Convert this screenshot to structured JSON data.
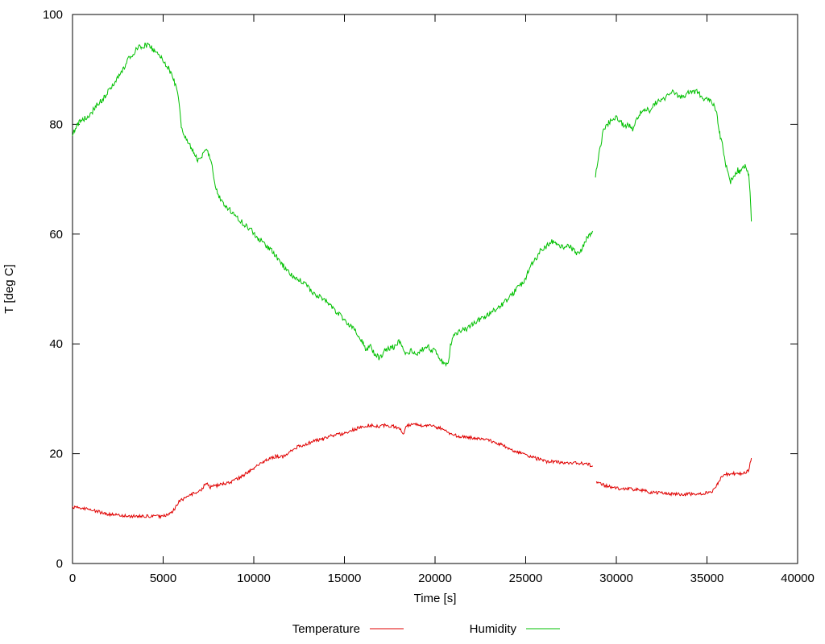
{
  "chart_data": {
    "type": "line",
    "title": "",
    "xlabel": "Time [s]",
    "ylabel": "T [deg C]",
    "xlim": [
      0,
      40000
    ],
    "ylim": [
      0,
      100
    ],
    "xticks": [
      0,
      5000,
      10000,
      15000,
      20000,
      25000,
      30000,
      35000,
      40000
    ],
    "yticks": [
      0,
      20,
      40,
      60,
      80,
      100
    ],
    "grid": false,
    "legend_position": "bottom-center",
    "sample_step": 40,
    "background": "#ffffff",
    "series": [
      {
        "name": "Temperature",
        "color": "#e00000",
        "noise": 0.3,
        "seed": 1234567,
        "segments": [
          [
            [
              0,
              10.3
            ],
            [
              900,
              9.9
            ],
            [
              1800,
              9.1
            ],
            [
              2700,
              8.7
            ],
            [
              3100,
              8.6
            ],
            [
              4900,
              8.6
            ],
            [
              5300,
              8.8
            ],
            [
              5600,
              9.8
            ],
            [
              5900,
              11.4
            ],
            [
              6200,
              11.9
            ],
            [
              6700,
              12.8
            ],
            [
              7100,
              13.3
            ],
            [
              7400,
              14.8
            ],
            [
              7600,
              13.9
            ],
            [
              8400,
              14.6
            ],
            [
              8900,
              15.0
            ],
            [
              9300,
              15.8
            ],
            [
              9800,
              16.9
            ],
            [
              10200,
              17.9
            ],
            [
              10700,
              18.8
            ],
            [
              11200,
              19.5
            ],
            [
              11600,
              19.4
            ],
            [
              12000,
              20.5
            ],
            [
              12400,
              21.2
            ],
            [
              12900,
              21.7
            ],
            [
              13300,
              22.3
            ],
            [
              13800,
              22.7
            ],
            [
              14200,
              23.2
            ],
            [
              14700,
              23.5
            ],
            [
              15100,
              23.8
            ],
            [
              15600,
              24.5
            ],
            [
              16000,
              24.9
            ],
            [
              16400,
              25.2
            ],
            [
              16900,
              24.9
            ],
            [
              17300,
              25.2
            ],
            [
              17800,
              24.9
            ],
            [
              18100,
              24.4
            ],
            [
              18250,
              23.5
            ],
            [
              18400,
              25.0
            ],
            [
              18700,
              25.4
            ],
            [
              19100,
              25.2
            ],
            [
              19600,
              25.2
            ],
            [
              20000,
              24.9
            ],
            [
              20400,
              24.6
            ],
            [
              20900,
              23.6
            ],
            [
              21300,
              23.1
            ],
            [
              22200,
              22.9
            ],
            [
              22700,
              22.7
            ],
            [
              23100,
              22.3
            ],
            [
              23600,
              21.7
            ],
            [
              24000,
              21.1
            ],
            [
              24400,
              20.5
            ],
            [
              24900,
              19.9
            ],
            [
              25300,
              19.4
            ],
            [
              25800,
              18.9
            ],
            [
              26200,
              18.5
            ],
            [
              26700,
              18.6
            ],
            [
              27100,
              18.3
            ],
            [
              27600,
              18.4
            ],
            [
              28000,
              18.2
            ],
            [
              28400,
              18.2
            ],
            [
              28700,
              17.7
            ]
          ],
          [
            [
              28900,
              14.7
            ],
            [
              29300,
              14.3
            ],
            [
              29800,
              13.9
            ],
            [
              30200,
              13.6
            ],
            [
              30700,
              13.6
            ],
            [
              31100,
              13.4
            ],
            [
              31600,
              13.2
            ],
            [
              32000,
              12.9
            ],
            [
              32400,
              12.8
            ],
            [
              32900,
              12.7
            ],
            [
              33300,
              12.6
            ],
            [
              33800,
              12.6
            ],
            [
              34200,
              12.7
            ],
            [
              34700,
              12.7
            ],
            [
              35100,
              12.9
            ],
            [
              35300,
              13.2
            ],
            [
              35600,
              14.7
            ],
            [
              35800,
              15.8
            ],
            [
              36000,
              16.4
            ],
            [
              36200,
              16.1
            ],
            [
              36400,
              16.4
            ],
            [
              36900,
              16.3
            ],
            [
              37200,
              16.6
            ],
            [
              37300,
              17.0
            ],
            [
              37450,
              19.2
            ]
          ]
        ]
      },
      {
        "name": "Humidity",
        "color": "#00c000",
        "noise": 0.5,
        "seed": 987654,
        "segments": [
          [
            [
              0,
              78.4
            ],
            [
              400,
              80.6
            ],
            [
              900,
              81.4
            ],
            [
              1300,
              83.3
            ],
            [
              1800,
              85.0
            ],
            [
              2200,
              87.2
            ],
            [
              2700,
              89.4
            ],
            [
              3100,
              92.0
            ],
            [
              3500,
              93.5
            ],
            [
              3800,
              94.3
            ],
            [
              4200,
              94.4
            ],
            [
              4400,
              93.8
            ],
            [
              4900,
              92.0
            ],
            [
              5300,
              90.2
            ],
            [
              5600,
              88.0
            ],
            [
              5800,
              85.5
            ],
            [
              5950,
              81.5
            ],
            [
              6000,
              79.2
            ],
            [
              6200,
              77.7
            ],
            [
              6700,
              74.8
            ],
            [
              6900,
              73.3
            ],
            [
              7100,
              74.0
            ],
            [
              7300,
              75.5
            ],
            [
              7500,
              74.8
            ],
            [
              7700,
              72.5
            ],
            [
              7800,
              69.6
            ],
            [
              8000,
              67.4
            ],
            [
              8400,
              65.2
            ],
            [
              8900,
              63.8
            ],
            [
              9300,
              62.3
            ],
            [
              9800,
              60.9
            ],
            [
              10200,
              59.4
            ],
            [
              10700,
              57.9
            ],
            [
              11100,
              56.5
            ],
            [
              11600,
              54.3
            ],
            [
              12000,
              52.8
            ],
            [
              12400,
              52.0
            ],
            [
              12900,
              50.6
            ],
            [
              13300,
              49.1
            ],
            [
              13800,
              48.4
            ],
            [
              14200,
              46.9
            ],
            [
              14700,
              45.5
            ],
            [
              15100,
              44.0
            ],
            [
              15600,
              42.5
            ],
            [
              15800,
              41.0
            ],
            [
              16000,
              40.3
            ],
            [
              16200,
              38.9
            ],
            [
              16400,
              39.6
            ],
            [
              16700,
              38.1
            ],
            [
              16900,
              37.4
            ],
            [
              17300,
              38.9
            ],
            [
              17800,
              39.6
            ],
            [
              18000,
              40.3
            ],
            [
              18200,
              39.6
            ],
            [
              18400,
              38.1
            ],
            [
              18700,
              38.9
            ],
            [
              19100,
              38.1
            ],
            [
              19300,
              39.0
            ],
            [
              19600,
              39.6
            ],
            [
              19800,
              38.5
            ],
            [
              20000,
              38.9
            ],
            [
              20200,
              37.4
            ],
            [
              20400,
              36.7
            ],
            [
              20600,
              36.2
            ],
            [
              20750,
              36.7
            ],
            [
              20850,
              39.6
            ],
            [
              20950,
              41.0
            ],
            [
              21200,
              41.8
            ],
            [
              21300,
              42.2
            ],
            [
              21800,
              42.8
            ],
            [
              22200,
              44.0
            ],
            [
              22700,
              44.7
            ],
            [
              23100,
              45.7
            ],
            [
              23600,
              46.9
            ],
            [
              24000,
              48.1
            ],
            [
              24400,
              49.6
            ],
            [
              24900,
              51.3
            ],
            [
              25100,
              52.8
            ],
            [
              25300,
              54.3
            ],
            [
              25600,
              55.7
            ],
            [
              25800,
              56.9
            ],
            [
              26000,
              57.5
            ],
            [
              26200,
              57.9
            ],
            [
              26400,
              58.7
            ],
            [
              26700,
              58.4
            ],
            [
              26900,
              57.9
            ],
            [
              27100,
              57.5
            ],
            [
              27400,
              57.8
            ],
            [
              27600,
              57.2
            ],
            [
              27800,
              56.5
            ],
            [
              28000,
              56.9
            ],
            [
              28200,
              57.9
            ],
            [
              28400,
              59.4
            ],
            [
              28700,
              60.4
            ]
          ],
          [
            [
              28850,
              70.5
            ],
            [
              29000,
              73.5
            ],
            [
              29150,
              76.5
            ],
            [
              29300,
              79.0
            ],
            [
              29600,
              80.4
            ],
            [
              29800,
              80.9
            ],
            [
              30000,
              81.4
            ],
            [
              30200,
              80.6
            ],
            [
              30500,
              79.5
            ],
            [
              30700,
              79.9
            ],
            [
              30900,
              79.2
            ],
            [
              31100,
              80.6
            ],
            [
              31300,
              82.1
            ],
            [
              31600,
              82.8
            ],
            [
              31800,
              82.4
            ],
            [
              32000,
              83.3
            ],
            [
              32200,
              83.9
            ],
            [
              32400,
              84.3
            ],
            [
              32700,
              84.8
            ],
            [
              32900,
              85.3
            ],
            [
              33100,
              85.8
            ],
            [
              33300,
              85.3
            ],
            [
              33500,
              85.0
            ],
            [
              33800,
              85.3
            ],
            [
              34000,
              85.8
            ],
            [
              34200,
              86.1
            ],
            [
              34500,
              85.8
            ],
            [
              34700,
              85.0
            ],
            [
              35100,
              84.3
            ],
            [
              35300,
              83.9
            ],
            [
              35500,
              82.8
            ],
            [
              35600,
              80.6
            ],
            [
              35700,
              78.4
            ],
            [
              35850,
              76.2
            ],
            [
              36000,
              73.3
            ],
            [
              36150,
              71.1
            ],
            [
              36300,
              69.6
            ],
            [
              36500,
              70.4
            ],
            [
              36700,
              71.8
            ],
            [
              36800,
              71.1
            ],
            [
              37100,
              72.6
            ],
            [
              37200,
              71.5
            ],
            [
              37300,
              71.1
            ],
            [
              37380,
              67.4
            ],
            [
              37450,
              62.3
            ]
          ]
        ]
      }
    ]
  },
  "legend": {
    "items": [
      {
        "label": "Temperature"
      },
      {
        "label": "Humidity"
      }
    ]
  }
}
